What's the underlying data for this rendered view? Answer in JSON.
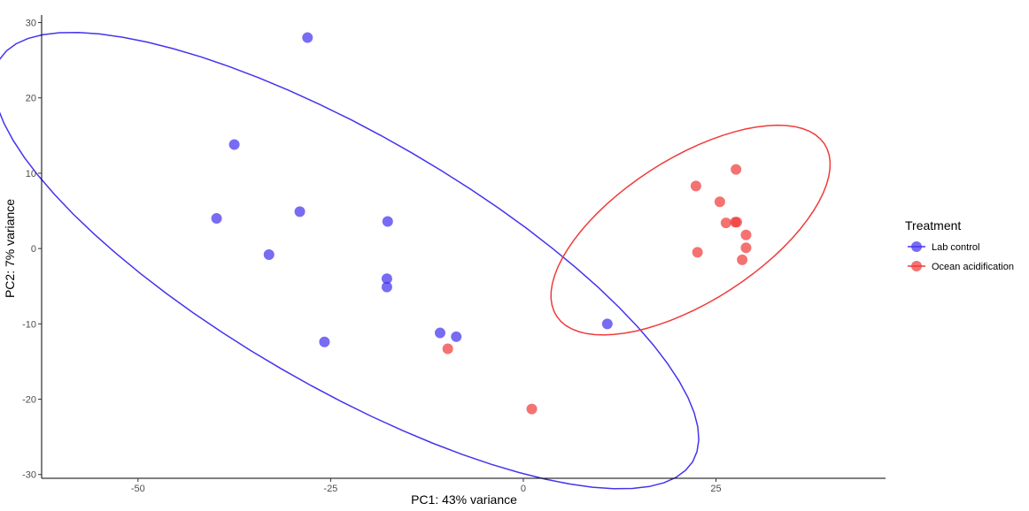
{
  "chart_data": {
    "type": "scatter",
    "xlabel": "PC1: 43% variance",
    "ylabel": "PC2: 7% variance",
    "xlim": [
      -62.5,
      47
    ],
    "ylim": [
      -30.5,
      31
    ],
    "xticks": [
      -50,
      -25,
      0,
      25
    ],
    "yticks": [
      -30,
      -20,
      -10,
      0,
      10,
      20,
      30
    ],
    "grid": false,
    "legend": {
      "title": "Treatment",
      "position": "right",
      "entries": [
        "Lab control",
        "Ocean acidification"
      ]
    },
    "colors": {
      "Lab control": "#4433ee",
      "Ocean acidification": "#f03b3b"
    },
    "series": [
      {
        "name": "Lab control",
        "points": [
          {
            "x": -28,
            "y": 28
          },
          {
            "x": -37.5,
            "y": 13.8
          },
          {
            "x": -39.8,
            "y": 4
          },
          {
            "x": -29,
            "y": 4.9
          },
          {
            "x": -33,
            "y": -0.8
          },
          {
            "x": -17.6,
            "y": 3.6
          },
          {
            "x": -17.7,
            "y": -4
          },
          {
            "x": -17.7,
            "y": -5.1
          },
          {
            "x": -25.8,
            "y": -12.4
          },
          {
            "x": -10.8,
            "y": -11.2
          },
          {
            "x": -8.7,
            "y": -11.7
          },
          {
            "x": 10.9,
            "y": -10
          }
        ]
      },
      {
        "name": "Ocean acidification",
        "points": [
          {
            "x": 27.6,
            "y": 10.5
          },
          {
            "x": 22.4,
            "y": 8.3
          },
          {
            "x": 25.5,
            "y": 6.2
          },
          {
            "x": 26.3,
            "y": 3.4
          },
          {
            "x": 27.5,
            "y": 3.5
          },
          {
            "x": 27.7,
            "y": 3.5
          },
          {
            "x": 28.9,
            "y": 1.8
          },
          {
            "x": 28.9,
            "y": 0.1
          },
          {
            "x": 28.4,
            "y": -1.5
          },
          {
            "x": 22.6,
            "y": -0.5
          },
          {
            "x": -9.8,
            "y": -13.3
          },
          {
            "x": 1.1,
            "y": -21.3
          }
        ]
      }
    ],
    "ellipses": [
      {
        "name": "Lab control",
        "cx": -23,
        "cy": -1.6,
        "a": 52.3,
        "b": 16.65,
        "angle_deg": -30.7
      },
      {
        "name": "Ocean acidification",
        "cx": 21.7,
        "cy": 2.45,
        "a": 20.8,
        "b": 9.45,
        "angle_deg": 33.5
      }
    ]
  }
}
